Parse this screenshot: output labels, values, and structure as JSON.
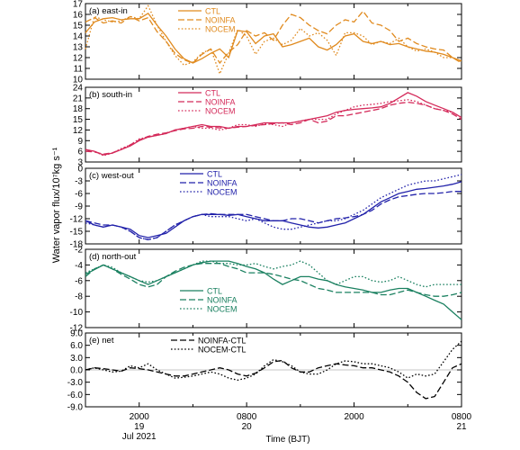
{
  "figure": {
    "ylabel": "Water vapor flux/10⁷kg s⁻¹",
    "xlabel": "Time (BJT)",
    "colors": {
      "panel_a": "#e08a1e",
      "panel_b": "#d42a5a",
      "panel_c": "#2222aa",
      "panel_d": "#1a8060",
      "panel_e": "#000000"
    }
  },
  "chart_data": [
    {
      "type": "line",
      "panel_label": "(a) east-in",
      "ylim": [
        10,
        17
      ],
      "yticks": [
        10,
        11,
        12,
        13,
        14,
        15,
        16,
        17
      ],
      "x": [
        0,
        1,
        2,
        3,
        4,
        5,
        6,
        7,
        8,
        9,
        10,
        11,
        12,
        13,
        14,
        15,
        16,
        17,
        18,
        19,
        20,
        21,
        22,
        23,
        24,
        25,
        26,
        27,
        28,
        29,
        30,
        31,
        32,
        33,
        34,
        35,
        36,
        37,
        38,
        39,
        40,
        41,
        42
      ],
      "series": [
        {
          "name": "CTL",
          "style": "solid",
          "values": [
            14.3,
            15.3,
            15.6,
            15.7,
            15.5,
            15.6,
            15.6,
            16.1,
            15.0,
            14.0,
            12.8,
            11.9,
            11.5,
            11.9,
            12.4,
            12.8,
            12.0,
            14.5,
            14.4,
            13.3,
            14.0,
            14.2,
            13.0,
            13.2,
            13.5,
            13.8,
            13.0,
            12.7,
            13.2,
            14.0,
            14.2,
            13.5,
            13.3,
            13.5,
            13.2,
            13.3,
            13.0,
            12.8,
            12.6,
            12.5,
            12.3,
            12.0,
            11.7
          ]
        },
        {
          "name": "NOINFA",
          "style": "dashed",
          "values": [
            15.3,
            15.7,
            15.2,
            15.4,
            15.2,
            15.8,
            15.4,
            15.7,
            14.4,
            13.5,
            12.4,
            11.8,
            11.5,
            12.3,
            12.8,
            11.5,
            12.5,
            13.2,
            14.5,
            14.0,
            14.3,
            13.6,
            15.0,
            16.0,
            15.7,
            15.0,
            14.5,
            14.2,
            15.0,
            15.5,
            15.3,
            16.3,
            15.2,
            15.0,
            14.5,
            13.5,
            13.8,
            13.3,
            13.0,
            12.8,
            12.7,
            12.0,
            11.5
          ]
        },
        {
          "name": "NOCEM",
          "style": "dotted",
          "values": [
            12.8,
            15.8,
            15.5,
            15.3,
            15.4,
            15.8,
            15.6,
            16.8,
            15.0,
            13.5,
            12.2,
            11.3,
            11.6,
            12.4,
            12.8,
            10.5,
            12.4,
            14.6,
            14.0,
            12.3,
            13.5,
            13.8,
            13.2,
            13.6,
            14.7,
            14.0,
            14.3,
            13.6,
            12.2,
            14.3,
            14.3,
            14.0,
            13.2,
            13.5,
            13.3,
            13.8,
            13.0,
            12.6,
            12.8,
            12.5,
            12.0,
            12.0,
            11.6
          ]
        }
      ]
    },
    {
      "type": "line",
      "panel_label": "(b) south-in",
      "ylim": [
        3,
        24
      ],
      "yticks": [
        3,
        6,
        9,
        12,
        15,
        18,
        21,
        24
      ],
      "x": [
        0,
        1,
        2,
        3,
        4,
        5,
        6,
        7,
        8,
        9,
        10,
        11,
        12,
        13,
        14,
        15,
        16,
        17,
        18,
        19,
        20,
        21,
        22,
        23,
        24,
        25,
        26,
        27,
        28,
        29,
        30,
        31,
        32,
        33,
        34,
        35,
        36,
        37,
        38,
        39,
        40,
        41,
        42
      ],
      "series": [
        {
          "name": "CTL",
          "style": "solid",
          "values": [
            6.5,
            6.0,
            5.0,
            5.5,
            6.5,
            7.5,
            9.0,
            10.0,
            10.5,
            11.0,
            12.0,
            12.5,
            13.0,
            13.5,
            13.0,
            13.0,
            12.5,
            13.0,
            13.0,
            13.5,
            14.0,
            14.0,
            14.0,
            14.0,
            14.5,
            15.0,
            15.5,
            16.0,
            17.0,
            17.5,
            17.8,
            18.0,
            18.2,
            18.5,
            19.5,
            21.0,
            22.5,
            21.5,
            20.0,
            19.0,
            18.0,
            17.0,
            15.5
          ]
        },
        {
          "name": "NOINFA",
          "style": "dashed",
          "values": [
            6.0,
            5.8,
            5.2,
            5.6,
            6.5,
            7.8,
            9.2,
            10.2,
            10.8,
            11.2,
            11.8,
            12.3,
            12.5,
            13.0,
            12.8,
            12.6,
            12.5,
            12.8,
            13.0,
            13.3,
            13.5,
            13.8,
            14.0,
            13.5,
            14.0,
            15.0,
            14.0,
            14.5,
            16.0,
            16.0,
            16.5,
            17.0,
            17.5,
            18.0,
            19.0,
            19.5,
            19.8,
            19.5,
            19.0,
            18.0,
            17.5,
            16.5,
            15.0
          ]
        },
        {
          "name": "NOCEM",
          "style": "dotted",
          "values": [
            6.5,
            6.0,
            4.8,
            5.5,
            6.8,
            7.8,
            9.5,
            10.0,
            10.5,
            11.0,
            12.0,
            12.5,
            13.0,
            12.5,
            12.5,
            12.0,
            12.5,
            13.5,
            13.5,
            13.0,
            13.8,
            13.5,
            13.0,
            14.0,
            14.5,
            15.0,
            15.0,
            15.0,
            16.5,
            17.5,
            18.5,
            19.0,
            19.2,
            19.5,
            20.0,
            20.2,
            20.5,
            20.0,
            19.0,
            18.0,
            17.5,
            17.0,
            15.5
          ]
        }
      ]
    },
    {
      "type": "line",
      "panel_label": "(c) west-out",
      "ylim": [
        -18,
        0
      ],
      "yticks": [
        -18,
        -15,
        -12,
        -9,
        -6,
        -3,
        0
      ],
      "x": [
        0,
        1,
        2,
        3,
        4,
        5,
        6,
        7,
        8,
        9,
        10,
        11,
        12,
        13,
        14,
        15,
        16,
        17,
        18,
        19,
        20,
        21,
        22,
        23,
        24,
        25,
        26,
        27,
        28,
        29,
        30,
        31,
        32,
        33,
        34,
        35,
        36,
        37,
        38,
        39,
        40,
        41,
        42
      ],
      "series": [
        {
          "name": "CTL",
          "style": "solid",
          "values": [
            -12.5,
            -13.5,
            -14.0,
            -13.5,
            -14.0,
            -14.5,
            -16.0,
            -16.5,
            -16.0,
            -15.5,
            -14.0,
            -12.5,
            -11.5,
            -11.0,
            -11.0,
            -11.0,
            -11.2,
            -11.0,
            -11.5,
            -12.0,
            -12.5,
            -12.5,
            -12.5,
            -13.0,
            -13.5,
            -14.0,
            -14.2,
            -14.0,
            -13.5,
            -13.0,
            -12.0,
            -11.0,
            -9.5,
            -8.0,
            -7.0,
            -6.0,
            -5.5,
            -5.0,
            -4.8,
            -4.5,
            -4.2,
            -3.8,
            -3.2
          ]
        },
        {
          "name": "NOINFA",
          "style": "dashed",
          "values": [
            -12.5,
            -13.0,
            -13.5,
            -13.5,
            -14.0,
            -15.0,
            -16.5,
            -17.0,
            -16.5,
            -15.0,
            -13.5,
            -12.5,
            -11.5,
            -11.0,
            -10.8,
            -11.0,
            -11.0,
            -11.0,
            -11.0,
            -11.5,
            -12.0,
            -12.5,
            -12.5,
            -12.0,
            -12.0,
            -12.5,
            -13.0,
            -12.5,
            -12.0,
            -11.8,
            -11.5,
            -11.0,
            -10.0,
            -8.5,
            -7.5,
            -6.8,
            -6.5,
            -6.2,
            -6.0,
            -6.0,
            -5.8,
            -5.5,
            -5.5
          ]
        },
        {
          "name": "NOCEM",
          "style": "dotted",
          "values": [
            -13.0,
            -13.5,
            -14.0,
            -13.5,
            -14.0,
            -15.0,
            -16.5,
            -17.0,
            -16.5,
            -15.0,
            -13.5,
            -12.5,
            -11.5,
            -11.0,
            -11.5,
            -11.5,
            -11.5,
            -12.0,
            -12.5,
            -12.0,
            -13.0,
            -14.0,
            -14.5,
            -14.5,
            -14.0,
            -13.5,
            -13.0,
            -12.5,
            -12.5,
            -12.0,
            -11.0,
            -10.0,
            -8.5,
            -7.0,
            -6.0,
            -5.0,
            -4.0,
            -3.5,
            -3.0,
            -3.0,
            -2.5,
            -2.0,
            -1.5
          ]
        }
      ]
    },
    {
      "type": "line",
      "panel_label": "(d) north-out",
      "ylim": [
        -12,
        -2
      ],
      "yticks": [
        -12,
        -10,
        -8,
        -6,
        -4,
        -2
      ],
      "x": [
        0,
        1,
        2,
        3,
        4,
        5,
        6,
        7,
        8,
        9,
        10,
        11,
        12,
        13,
        14,
        15,
        16,
        17,
        18,
        19,
        20,
        21,
        22,
        23,
        24,
        25,
        26,
        27,
        28,
        29,
        30,
        31,
        32,
        33,
        34,
        35,
        36,
        37,
        38,
        39,
        40,
        41,
        42
      ],
      "series": [
        {
          "name": "CTL",
          "style": "solid",
          "values": [
            -5.2,
            -4.6,
            -4.0,
            -4.5,
            -5.0,
            -5.5,
            -6.0,
            -6.5,
            -6.0,
            -5.5,
            -5.0,
            -4.5,
            -4.0,
            -3.7,
            -3.5,
            -3.5,
            -3.5,
            -3.8,
            -4.2,
            -4.5,
            -5.0,
            -5.8,
            -6.5,
            -6.0,
            -5.5,
            -5.5,
            -5.8,
            -6.0,
            -6.5,
            -6.8,
            -7.0,
            -7.2,
            -7.5,
            -7.5,
            -7.2,
            -7.0,
            -7.0,
            -7.5,
            -8.0,
            -8.5,
            -9.0,
            -10.0,
            -11.0
          ]
        },
        {
          "name": "NOINFA",
          "style": "dashed",
          "values": [
            -5.5,
            -4.5,
            -4.0,
            -4.5,
            -5.2,
            -5.8,
            -6.5,
            -6.8,
            -6.5,
            -5.5,
            -4.8,
            -4.3,
            -4.0,
            -3.8,
            -3.8,
            -3.8,
            -4.2,
            -4.5,
            -5.0,
            -5.0,
            -5.0,
            -5.2,
            -5.5,
            -5.8,
            -6.0,
            -6.5,
            -7.0,
            -7.2,
            -7.5,
            -7.5,
            -7.5,
            -7.5,
            -7.5,
            -7.8,
            -7.8,
            -7.5,
            -7.2,
            -7.5,
            -7.8,
            -8.0,
            -8.0,
            -7.8,
            -7.5
          ]
        },
        {
          "name": "NOCEM",
          "style": "dotted",
          "values": [
            -5.0,
            -4.5,
            -4.0,
            -4.3,
            -5.0,
            -5.5,
            -6.0,
            -6.2,
            -6.0,
            -5.5,
            -5.0,
            -4.5,
            -4.0,
            -3.5,
            -3.5,
            -3.8,
            -3.8,
            -4.0,
            -4.0,
            -3.8,
            -4.2,
            -4.5,
            -4.2,
            -4.0,
            -3.5,
            -4.0,
            -5.0,
            -6.0,
            -6.5,
            -6.0,
            -5.5,
            -5.5,
            -6.0,
            -6.2,
            -6.0,
            -5.5,
            -6.0,
            -6.5,
            -6.8,
            -6.5,
            -6.5,
            -6.5,
            -6.5
          ]
        }
      ]
    },
    {
      "type": "line",
      "panel_label": "(e) net",
      "ylim": [
        -9,
        9
      ],
      "yticks": [
        -9.0,
        -6.0,
        -3.0,
        0.0,
        3.0,
        6.0,
        9.0
      ],
      "yticklabels": [
        "-9.0",
        "-6.0",
        "-3.0",
        "0.0",
        "3.0",
        "6.0",
        "9.0"
      ],
      "x": [
        0,
        1,
        2,
        3,
        4,
        5,
        6,
        7,
        8,
        9,
        10,
        11,
        12,
        13,
        14,
        15,
        16,
        17,
        18,
        19,
        20,
        21,
        22,
        23,
        24,
        25,
        26,
        27,
        28,
        29,
        30,
        31,
        32,
        33,
        34,
        35,
        36,
        37,
        38,
        39,
        40,
        41,
        42
      ],
      "series": [
        {
          "name": "NOINFA-CTL",
          "style": "dashed",
          "values": [
            0.0,
            0.5,
            0.3,
            0.0,
            -0.3,
            0.5,
            0.3,
            0.0,
            -0.5,
            -1.0,
            -1.5,
            -1.5,
            -1.0,
            -0.5,
            0.0,
            0.5,
            0.0,
            -1.0,
            -1.5,
            -0.8,
            0.5,
            2.0,
            2.3,
            0.5,
            -0.5,
            -0.5,
            0.5,
            1.0,
            1.5,
            1.2,
            1.0,
            0.5,
            0.5,
            0.0,
            -0.5,
            -1.5,
            -3.0,
            -5.5,
            -7.0,
            -6.5,
            -3.0,
            0.5,
            1.5
          ]
        },
        {
          "name": "NOCEM-CTL",
          "style": "dotted",
          "values": [
            0.0,
            0.5,
            0.0,
            -0.5,
            -0.3,
            1.0,
            0.5,
            1.5,
            0.0,
            -1.0,
            -2.0,
            -1.8,
            -1.5,
            -1.0,
            -0.5,
            -1.0,
            -2.0,
            -2.5,
            -2.0,
            -1.0,
            1.0,
            2.5,
            2.0,
            1.0,
            -0.5,
            -1.0,
            -1.0,
            0.0,
            1.5,
            2.2,
            2.0,
            1.5,
            1.5,
            1.0,
            0.5,
            -0.5,
            -2.0,
            -1.0,
            -1.5,
            -1.0,
            2.0,
            5.0,
            7.0
          ]
        }
      ]
    }
  ],
  "x_axis": {
    "tick_positions": [
      6,
      18,
      30,
      42
    ],
    "tick_labels_line1": [
      "2000",
      "0800",
      "2000",
      "0800"
    ],
    "tick_labels_line2": [
      "19",
      "20",
      "",
      "21"
    ],
    "tick_labels_line3": [
      "Jul 2021",
      "",
      "",
      ""
    ],
    "minor_tick_positions": [
      0,
      12,
      24,
      36
    ]
  }
}
